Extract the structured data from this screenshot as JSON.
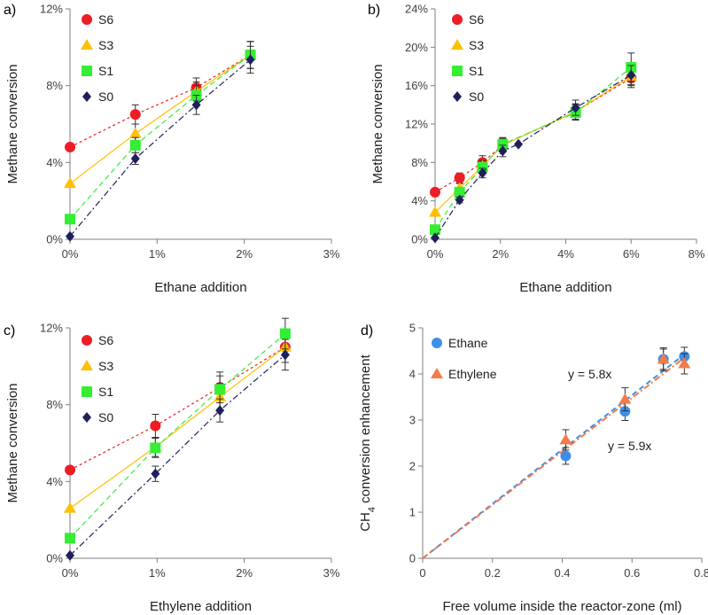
{
  "colors": {
    "S6": "#ee1c25",
    "S3": "#ffc000",
    "S1": "#33ee33",
    "S0": "#1f1f5c",
    "Ethane": "#3d8ee8",
    "Ethylene": "#f47b4a",
    "axis": "#7f7f7f",
    "error": "#333333"
  },
  "chart_data": [
    {
      "type": "scatter",
      "panel_label": "a)",
      "xlabel": "Ethane addition",
      "ylabel": "Methane conversion",
      "xlim": [
        0,
        3
      ],
      "ylim": [
        0,
        12
      ],
      "xticks": [
        0,
        1,
        2,
        3
      ],
      "xtick_labels": [
        "0%",
        "1%",
        "2%",
        "3%"
      ],
      "yticks": [
        0,
        4,
        8,
        12
      ],
      "ytick_labels": [
        "0%",
        "4%",
        "8%",
        "12%"
      ],
      "legend": {
        "position": "top-left",
        "entries": [
          "S6",
          "S3",
          "S1",
          "S0"
        ]
      },
      "series": [
        {
          "name": "S6",
          "marker": "circle",
          "line": "dash-fine",
          "x": [
            0,
            0.75,
            1.45,
            2.07
          ],
          "y": [
            4.8,
            6.5,
            7.9,
            9.6
          ],
          "err": [
            0,
            0.5,
            0.5,
            0.7
          ]
        },
        {
          "name": "S3",
          "marker": "triangle",
          "line": "solid",
          "x": [
            0,
            0.75,
            1.45,
            2.07
          ],
          "y": [
            2.9,
            5.5,
            7.7,
            9.6
          ],
          "err": [
            0,
            0.5,
            0.5,
            0.7
          ]
        },
        {
          "name": "S1",
          "marker": "square",
          "line": "dash",
          "x": [
            0,
            0.75,
            1.45,
            2.07
          ],
          "y": [
            1.05,
            4.9,
            7.5,
            9.6
          ],
          "err": [
            0,
            0.4,
            0.5,
            0.7
          ]
        },
        {
          "name": "S0",
          "marker": "diamond",
          "line": "dashdot",
          "x": [
            0,
            0.75,
            1.45,
            2.07
          ],
          "y": [
            0.15,
            4.2,
            7.0,
            9.35
          ],
          "err": [
            0,
            0.3,
            0.5,
            0.7
          ]
        }
      ]
    },
    {
      "type": "scatter",
      "panel_label": "b)",
      "xlabel": "Ethane addition",
      "ylabel": "Methane conversion",
      "xlim": [
        0,
        8
      ],
      "ylim": [
        0,
        24
      ],
      "xticks": [
        0,
        2,
        4,
        6,
        8
      ],
      "xtick_labels": [
        "0%",
        "2%",
        "4%",
        "6%",
        "8%"
      ],
      "yticks": [
        0,
        4,
        8,
        12,
        16,
        20,
        24
      ],
      "ytick_labels": [
        "0%",
        "4%",
        "8%",
        "12%",
        "16%",
        "20%",
        "24%"
      ],
      "legend": {
        "position": "top-left",
        "entries": [
          "S6",
          "S3",
          "S1",
          "S0"
        ]
      },
      "series": [
        {
          "name": "S6",
          "marker": "circle",
          "line": "dash-fine",
          "x": [
            0,
            0.75,
            1.45,
            2.07,
            4.3,
            6
          ],
          "y": [
            4.9,
            6.4,
            8.0,
            9.8,
            13.3,
            16.8
          ],
          "err": [
            0,
            0.5,
            0.7,
            0.7,
            0.8,
            1.0
          ]
        },
        {
          "name": "S3",
          "marker": "triangle",
          "line": "solid",
          "x": [
            0,
            0.75,
            1.45,
            2.07,
            4.3,
            6
          ],
          "y": [
            2.8,
            5.3,
            7.6,
            9.8,
            13.3,
            17.0
          ],
          "err": [
            0,
            0.5,
            0.6,
            0.7,
            0.8,
            1.0
          ]
        },
        {
          "name": "S1",
          "marker": "square",
          "line": "dash",
          "x": [
            0,
            0.75,
            1.45,
            2.07,
            4.3,
            6
          ],
          "y": [
            1.0,
            4.9,
            7.5,
            9.9,
            13.2,
            17.9
          ],
          "err": [
            0,
            0.4,
            0.5,
            0.7,
            0.8,
            1.5
          ]
        },
        {
          "name": "S0",
          "marker": "diamond",
          "line": "dashdot",
          "x": [
            0,
            0.75,
            1.45,
            2.07,
            2.55,
            4.3,
            6
          ],
          "y": [
            0.15,
            4.1,
            6.9,
            9.2,
            9.9,
            13.7,
            17.1
          ],
          "err": [
            0,
            0.3,
            0.5,
            0.6,
            0,
            0.8,
            1.0
          ]
        }
      ]
    },
    {
      "type": "scatter",
      "panel_label": "c)",
      "xlabel": "Ethylene addition",
      "ylabel": "Methane conversion",
      "xlim": [
        0,
        3
      ],
      "ylim": [
        0,
        12
      ],
      "xticks": [
        0,
        1,
        2,
        3
      ],
      "xtick_labels": [
        "0%",
        "1%",
        "2%",
        "3%"
      ],
      "yticks": [
        0,
        4,
        8,
        12
      ],
      "ytick_labels": [
        "0%",
        "4%",
        "8%",
        "12%"
      ],
      "legend": {
        "position": "top-left",
        "entries": [
          "S6",
          "S3",
          "S1",
          "S0"
        ]
      },
      "series": [
        {
          "name": "S6",
          "marker": "circle",
          "line": "dash-fine",
          "x": [
            0,
            0.98,
            1.72,
            2.47
          ],
          "y": [
            4.6,
            6.9,
            8.9,
            11.0
          ],
          "err": [
            0,
            0.6,
            0.8,
            0.8
          ]
        },
        {
          "name": "S3",
          "marker": "triangle",
          "line": "solid",
          "x": [
            0,
            0.98,
            1.72,
            2.47
          ],
          "y": [
            2.6,
            5.8,
            8.4,
            11.0
          ],
          "err": [
            0,
            0.5,
            0.7,
            0.8
          ]
        },
        {
          "name": "S1",
          "marker": "square",
          "line": "dash",
          "x": [
            0,
            0.98,
            1.72,
            2.47
          ],
          "y": [
            1.05,
            5.75,
            8.8,
            11.7
          ],
          "err": [
            0,
            0.5,
            0.7,
            0.8
          ]
        },
        {
          "name": "S0",
          "marker": "diamond",
          "line": "dashdot",
          "x": [
            0,
            0.98,
            1.72,
            2.47
          ],
          "y": [
            0.15,
            4.4,
            7.7,
            10.6
          ],
          "err": [
            0,
            0.4,
            0.6,
            0.8
          ]
        }
      ]
    },
    {
      "type": "scatter",
      "panel_label": "d)",
      "xlabel": "Free volume inside the reactor-zone (ml)",
      "ylabel": "CH4 conversion enhancement",
      "ylabel_main": "CH",
      "ylabel_sub": "4",
      "ylabel_rest": " conversion enhancement",
      "xlim": [
        0,
        0.8
      ],
      "ylim": [
        0,
        5
      ],
      "xticks": [
        0,
        0.2,
        0.4,
        0.6,
        0.8
      ],
      "xtick_labels": [
        "0",
        "0.2",
        "0.4",
        "0.6",
        "0.8"
      ],
      "yticks": [
        0,
        1,
        2,
        3,
        4,
        5
      ],
      "ytick_labels": [
        "0",
        "1",
        "2",
        "3",
        "4",
        "5"
      ],
      "legend": {
        "position": "top-left",
        "entries": [
          "Ethane",
          "Ethylene"
        ]
      },
      "annotations": [
        "y = 5.8x",
        "y = 5.9x"
      ],
      "series": [
        {
          "name": "Ethane",
          "marker": "circle",
          "x": [
            0.41,
            0.58,
            0.69,
            0.75
          ],
          "y": [
            2.22,
            3.19,
            4.32,
            4.38
          ],
          "err": [
            0.18,
            0.2,
            0.22,
            0.2
          ],
          "fit_slope": 5.9,
          "line": "dash"
        },
        {
          "name": "Ethylene",
          "marker": "triangle",
          "x": [
            0.41,
            0.58,
            0.69,
            0.75
          ],
          "y": [
            2.57,
            3.45,
            4.32,
            4.22
          ],
          "err": [
            0.22,
            0.25,
            0.25,
            0.22
          ],
          "fit_slope": 5.8,
          "line": "dashdot"
        }
      ]
    }
  ]
}
